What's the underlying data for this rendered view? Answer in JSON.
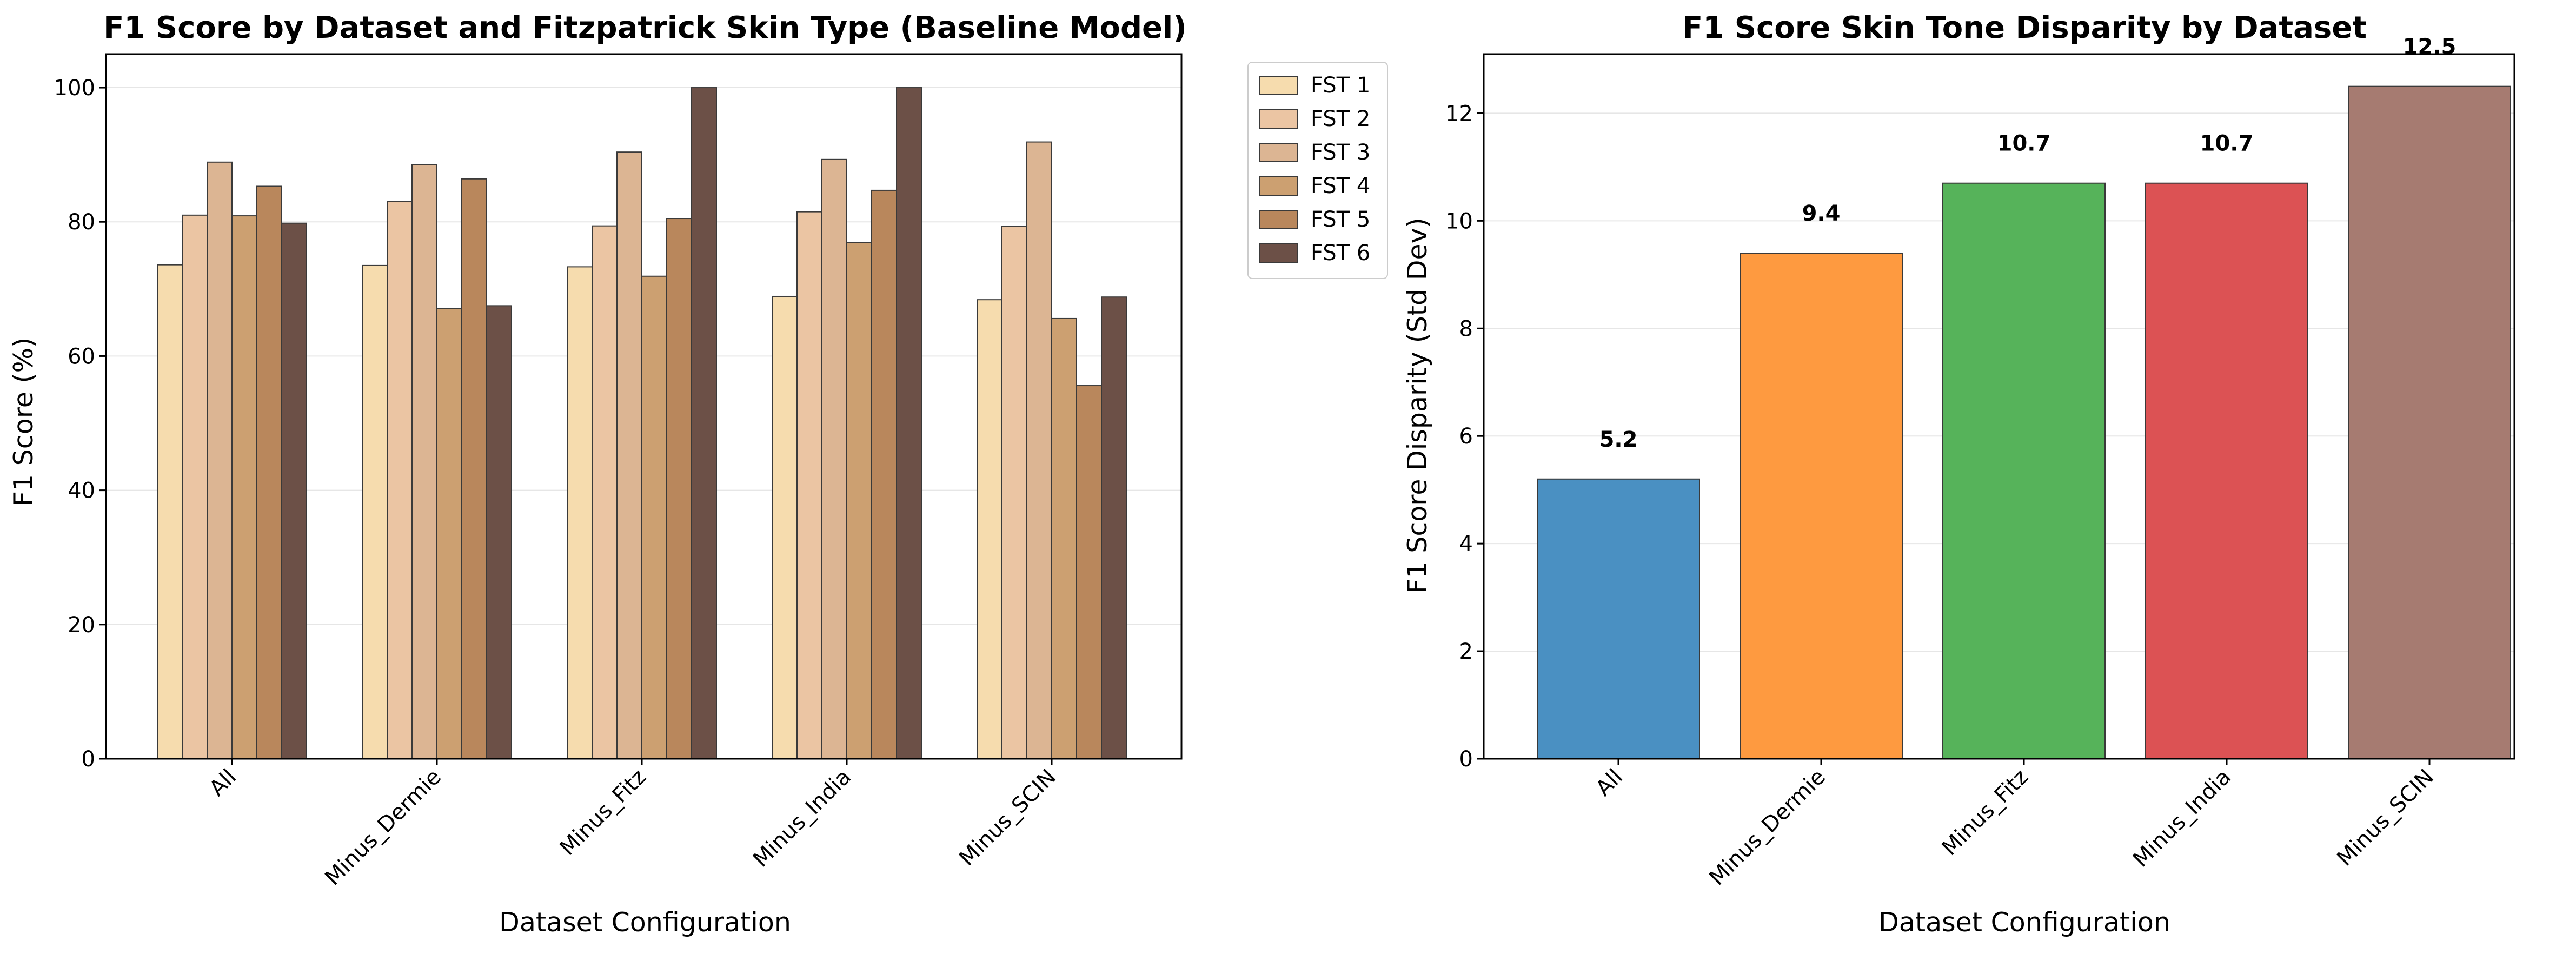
{
  "chart_data": [
    {
      "type": "bar",
      "title": "F1 Score by Dataset and Fitzpatrick Skin Type (Baseline Model)",
      "xlabel": "Dataset Configuration",
      "ylabel": "F1 Score (%)",
      "categories": [
        "All",
        "Minus_Dermie",
        "Minus_Fitz",
        "Minus_India",
        "Minus_SCIN"
      ],
      "ylim": [
        0,
        105
      ],
      "yticks": [
        0,
        20,
        40,
        60,
        80,
        100
      ],
      "grid": "y",
      "legend": "outside-top-right",
      "series": [
        {
          "name": "FST 1",
          "color": "#f6dcae",
          "values": [
            73.6,
            73.5,
            73.3,
            68.9,
            68.4
          ]
        },
        {
          "name": "FST 2",
          "color": "#ebc5a3",
          "values": [
            81.0,
            83.0,
            79.4,
            81.5,
            79.3
          ]
        },
        {
          "name": "FST 3",
          "color": "#dcb593",
          "values": [
            88.9,
            88.5,
            90.4,
            89.3,
            91.9
          ]
        },
        {
          "name": "FST 4",
          "color": "#cca071",
          "values": [
            80.9,
            67.1,
            71.9,
            76.9,
            65.6
          ]
        },
        {
          "name": "FST 5",
          "color": "#b9875c",
          "values": [
            85.3,
            86.4,
            80.5,
            84.7,
            55.6
          ]
        },
        {
          "name": "FST 6",
          "color": "#6c5047",
          "values": [
            79.8,
            67.5,
            100.0,
            100.0,
            68.8
          ]
        }
      ]
    },
    {
      "type": "bar",
      "title": "F1 Score Skin Tone Disparity by Dataset",
      "xlabel": "Dataset Configuration",
      "ylabel": "F1 Score Disparity (Std Dev)",
      "categories": [
        "All",
        "Minus_Dermie",
        "Minus_Fitz",
        "Minus_India",
        "Minus_SCIN"
      ],
      "values": [
        5.2,
        9.4,
        10.7,
        10.7,
        12.5
      ],
      "data_labels": [
        "5.2",
        "9.4",
        "10.7",
        "10.7",
        "12.5"
      ],
      "colors": [
        "#4a90c2",
        "#fe9a40",
        "#56b35a",
        "#dc5254",
        "#a67b71"
      ],
      "ylim": [
        0,
        13.1
      ],
      "yticks": [
        0,
        2,
        4,
        6,
        8,
        10,
        12
      ],
      "grid": "y"
    }
  ]
}
